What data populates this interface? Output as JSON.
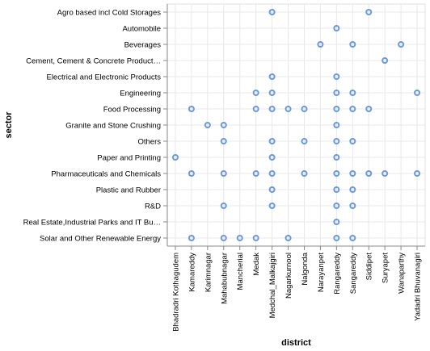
{
  "chart_data": {
    "type": "scatter",
    "xlabel": "district",
    "ylabel": "sector",
    "grid": true,
    "mark_color": "#4c78a8",
    "dot_color": "#6b98dc",
    "x_categories": [
      "Bhadradri Kothagudem",
      "Kamareddy",
      "Karimnagar",
      "Mahabubnagar",
      "Mancherial",
      "Medak",
      "Medchal_Malkajgiri",
      "Nagarkurnool",
      "Nalgonda",
      "Narayanpet",
      "Rangareddy",
      "Sangareddy",
      "Siddipet",
      "Suryapet",
      "Wanaparthy",
      "Yadadri Bhuvanagiri"
    ],
    "y_categories": [
      "Agro based incl Cold Storages",
      "Automobile",
      "Beverages",
      "Cement, Cement & Concrete Product…",
      "Electrical and Electronic Products",
      "Engineering",
      "Food Processing",
      "Granite and Stone Crushing",
      "Others",
      "Paper and Printing",
      "Pharmaceuticals and Chemicals",
      "Plastic and Rubber",
      "R&D",
      "Real Estate,Industrial Parks and IT Bu…",
      "Solar and Other Renewable Energy"
    ],
    "points": [
      {
        "x": "Medchal_Malkajgiri",
        "y": "Agro based incl Cold Storages"
      },
      {
        "x": "Siddipet",
        "y": "Agro based incl Cold Storages"
      },
      {
        "x": "Rangareddy",
        "y": "Automobile"
      },
      {
        "x": "Narayanpet",
        "y": "Beverages"
      },
      {
        "x": "Sangareddy",
        "y": "Beverages"
      },
      {
        "x": "Wanaparthy",
        "y": "Beverages"
      },
      {
        "x": "Suryapet",
        "y": "Cement, Cement & Concrete Product…"
      },
      {
        "x": "Medchal_Malkajgiri",
        "y": "Electrical and Electronic Products"
      },
      {
        "x": "Rangareddy",
        "y": "Electrical and Electronic Products"
      },
      {
        "x": "Medak",
        "y": "Engineering"
      },
      {
        "x": "Medchal_Malkajgiri",
        "y": "Engineering"
      },
      {
        "x": "Rangareddy",
        "y": "Engineering"
      },
      {
        "x": "Sangareddy",
        "y": "Engineering"
      },
      {
        "x": "Yadadri Bhuvanagiri",
        "y": "Engineering"
      },
      {
        "x": "Kamareddy",
        "y": "Food Processing"
      },
      {
        "x": "Medak",
        "y": "Food Processing"
      },
      {
        "x": "Medchal_Malkajgiri",
        "y": "Food Processing"
      },
      {
        "x": "Nagarkurnool",
        "y": "Food Processing"
      },
      {
        "x": "Nalgonda",
        "y": "Food Processing"
      },
      {
        "x": "Rangareddy",
        "y": "Food Processing"
      },
      {
        "x": "Sangareddy",
        "y": "Food Processing"
      },
      {
        "x": "Siddipet",
        "y": "Food Processing"
      },
      {
        "x": "Karimnagar",
        "y": "Granite and Stone Crushing"
      },
      {
        "x": "Mahabubnagar",
        "y": "Granite and Stone Crushing"
      },
      {
        "x": "Rangareddy",
        "y": "Granite and Stone Crushing"
      },
      {
        "x": "Mahabubnagar",
        "y": "Others"
      },
      {
        "x": "Medchal_Malkajgiri",
        "y": "Others"
      },
      {
        "x": "Nalgonda",
        "y": "Others"
      },
      {
        "x": "Rangareddy",
        "y": "Others"
      },
      {
        "x": "Sangareddy",
        "y": "Others"
      },
      {
        "x": "Bhadradri Kothagudem",
        "y": "Paper and Printing"
      },
      {
        "x": "Medchal_Malkajgiri",
        "y": "Paper and Printing"
      },
      {
        "x": "Rangareddy",
        "y": "Paper and Printing"
      },
      {
        "x": "Kamareddy",
        "y": "Pharmaceuticals and Chemicals"
      },
      {
        "x": "Mahabubnagar",
        "y": "Pharmaceuticals and Chemicals"
      },
      {
        "x": "Medak",
        "y": "Pharmaceuticals and Chemicals"
      },
      {
        "x": "Medchal_Malkajgiri",
        "y": "Pharmaceuticals and Chemicals"
      },
      {
        "x": "Nalgonda",
        "y": "Pharmaceuticals and Chemicals"
      },
      {
        "x": "Rangareddy",
        "y": "Pharmaceuticals and Chemicals"
      },
      {
        "x": "Sangareddy",
        "y": "Pharmaceuticals and Chemicals"
      },
      {
        "x": "Siddipet",
        "y": "Pharmaceuticals and Chemicals"
      },
      {
        "x": "Suryapet",
        "y": "Pharmaceuticals and Chemicals"
      },
      {
        "x": "Yadadri Bhuvanagiri",
        "y": "Pharmaceuticals and Chemicals"
      },
      {
        "x": "Medchal_Malkajgiri",
        "y": "Plastic and Rubber"
      },
      {
        "x": "Rangareddy",
        "y": "Plastic and Rubber"
      },
      {
        "x": "Sangareddy",
        "y": "Plastic and Rubber"
      },
      {
        "x": "Mahabubnagar",
        "y": "R&D"
      },
      {
        "x": "Medchal_Malkajgiri",
        "y": "R&D"
      },
      {
        "x": "Rangareddy",
        "y": "R&D"
      },
      {
        "x": "Sangareddy",
        "y": "R&D"
      },
      {
        "x": "Rangareddy",
        "y": "Real Estate,Industrial Parks and IT Bu…"
      },
      {
        "x": "Kamareddy",
        "y": "Solar and Other Renewable Energy"
      },
      {
        "x": "Mahabubnagar",
        "y": "Solar and Other Renewable Energy"
      },
      {
        "x": "Mancherial",
        "y": "Solar and Other Renewable Energy"
      },
      {
        "x": "Medak",
        "y": "Solar and Other Renewable Energy"
      },
      {
        "x": "Nagarkurnool",
        "y": "Solar and Other Renewable Energy"
      },
      {
        "x": "Rangareddy",
        "y": "Solar and Other Renewable Energy"
      },
      {
        "x": "Sangareddy",
        "y": "Solar and Other Renewable Energy"
      }
    ]
  }
}
